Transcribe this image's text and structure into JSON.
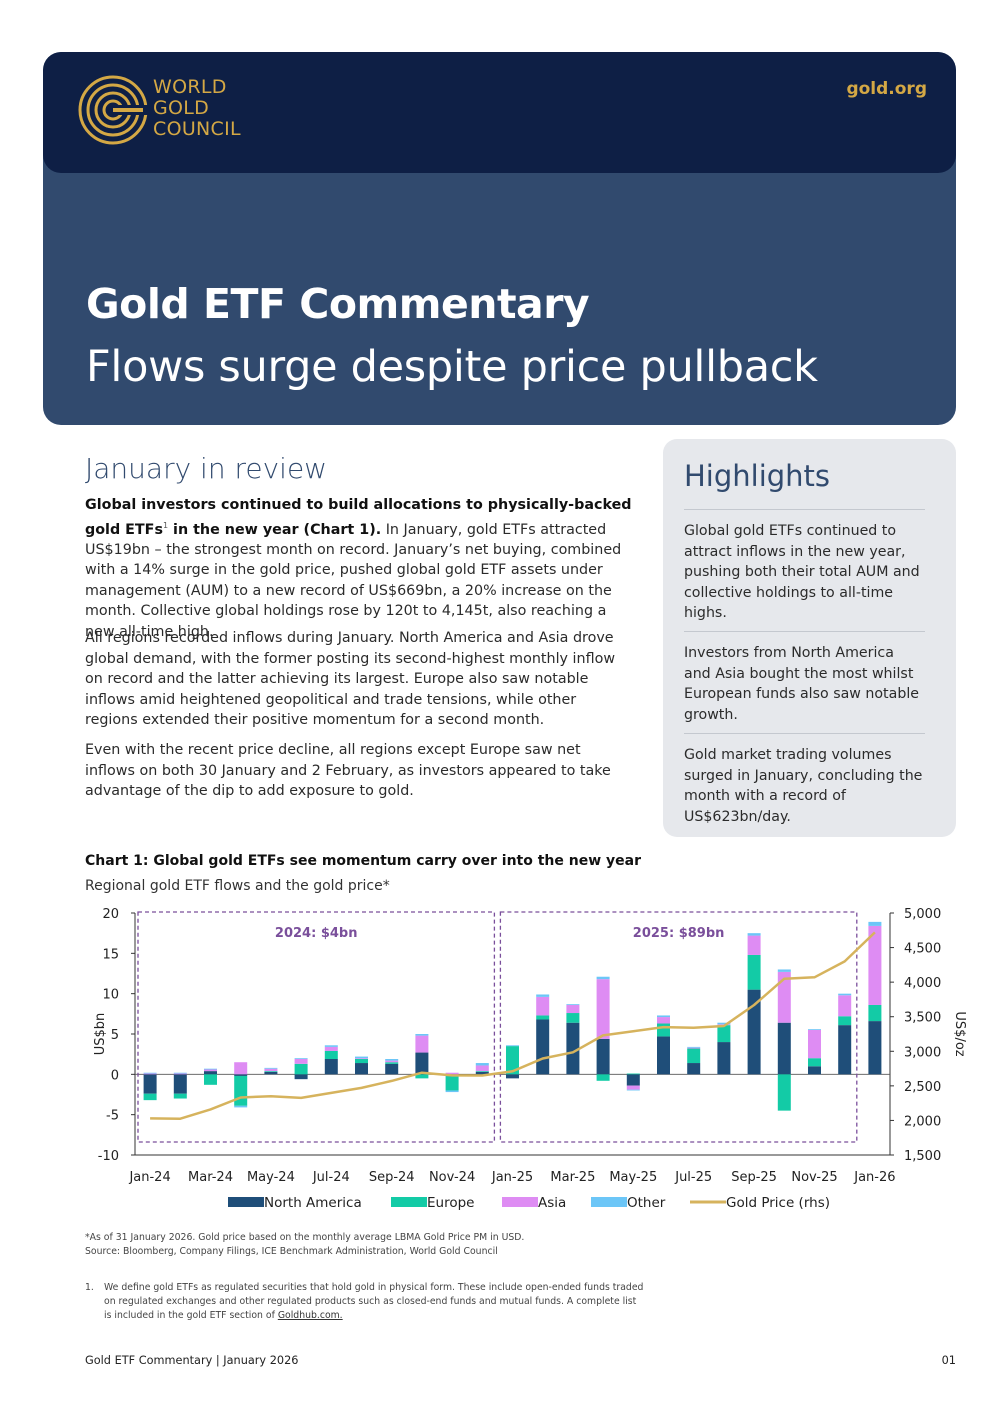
{
  "header": {
    "org_line1": "WORLD",
    "org_line2": "GOLD",
    "org_line3": "COUNCIL",
    "site": "gold.org",
    "title": "Gold ETF Commentary",
    "subtitle": "Flows surge despite price pullback"
  },
  "review": {
    "heading": "January in review",
    "p1_bold": "Global investors continued to build allocations to physically-backed gold ETFs",
    "p1_sup": "1",
    "p1_bold2": " in the new year (Chart 1).",
    "p1_rest": " In January, gold ETFs attracted US$19bn – the strongest month on record. January’s net buying, combined with a 14% surge in the gold price, pushed global gold ETF assets under management (AUM) to a new record of US$669bn, a 20% increase on the month. Collective global holdings rose by 120t to 4,145t, also reaching a new all-time high.",
    "p2": "All regions recorded inflows during January. North America and Asia drove global demand, with the former posting its second-highest monthly inflow on record and the latter achieving its largest. Europe also saw notable inflows amid heightened geopolitical and trade tensions, while other regions extended their positive momentum for a second month.",
    "p3": "Even with the recent price decline, all regions except Europe saw net inflows on both 30 January and 2 February, as investors appeared to take advantage of the dip to add exposure to gold."
  },
  "highlights": {
    "title": "Highlights",
    "items": [
      "Global gold ETFs continued to attract inflows in the new year, pushing both their total AUM and collective holdings to all-time highs.",
      "Investors from North America and Asia bought the most whilst European funds also saw notable growth.",
      "Gold market trading volumes surged in January, concluding the month with a record of US$623bn/day."
    ]
  },
  "chart": {
    "title": "Chart 1: Global gold ETFs see momentum carry over into the new year",
    "subtitle": "Regional gold ETF flows and the gold price*"
  },
  "chart_data": {
    "type": "bar",
    "stacked": true,
    "categories": [
      "Jan-24",
      "Feb-24",
      "Mar-24",
      "Apr-24",
      "May-24",
      "Jun-24",
      "Jul-24",
      "Aug-24",
      "Sep-24",
      "Oct-24",
      "Nov-24",
      "Dec-24",
      "Jan-25",
      "Feb-25",
      "Mar-25",
      "Apr-25",
      "May-25",
      "Jun-25",
      "Jul-25",
      "Aug-25",
      "Sep-25",
      "Oct-25",
      "Nov-25",
      "Dec-25",
      "Jan-26"
    ],
    "x_tick_labels": [
      "Jan-24",
      "Mar-24",
      "May-24",
      "Jul-24",
      "Sep-24",
      "Nov-24",
      "Jan-25",
      "Mar-25",
      "May-25",
      "Jul-25",
      "Sep-25",
      "Nov-25",
      "Jan-26"
    ],
    "series": [
      {
        "name": "North America",
        "color": "#1f4e79",
        "values": [
          -2.4,
          -2.4,
          0.4,
          -0.2,
          0.3,
          -0.6,
          1.9,
          1.4,
          1.3,
          2.7,
          -0.2,
          0.3,
          -0.5,
          6.8,
          6.4,
          4.4,
          -1.4,
          4.7,
          1.4,
          4.0,
          10.5,
          6.4,
          1.0,
          6.1,
          6.6
        ]
      },
      {
        "name": "Europe",
        "color": "#13cba6",
        "values": [
          -0.8,
          -0.6,
          -1.3,
          -3.7,
          0.1,
          1.3,
          1.0,
          0.5,
          0.2,
          -0.5,
          -1.8,
          0.1,
          3.5,
          0.5,
          1.2,
          -0.8,
          0.1,
          1.6,
          1.8,
          2.1,
          4.3,
          -4.5,
          1.0,
          1.1,
          2.0
        ]
      },
      {
        "name": "Asia",
        "color": "#de8cf3",
        "values": [
          0.1,
          0.1,
          0.2,
          1.5,
          0.3,
          0.6,
          0.5,
          0.1,
          0.2,
          2.1,
          0.2,
          0.7,
          0.0,
          2.3,
          1.0,
          7.4,
          -0.5,
          0.8,
          0.1,
          0.1,
          2.4,
          6.3,
          3.5,
          2.6,
          9.8
        ]
      },
      {
        "name": "Other",
        "color": "#6cc6f7",
        "values": [
          0.1,
          0.1,
          0.1,
          -0.2,
          0.1,
          0.1,
          0.2,
          0.2,
          0.2,
          0.2,
          -0.2,
          0.3,
          0.1,
          0.3,
          0.1,
          0.3,
          -0.1,
          0.2,
          0.1,
          0.2,
          0.3,
          0.3,
          0.1,
          0.2,
          0.5
        ]
      }
    ],
    "line_series": {
      "name": "Gold Price (rhs)",
      "color": "#d6b35d",
      "values": [
        2030,
        2025,
        2160,
        2331,
        2350,
        2326,
        2398,
        2470,
        2571,
        2690,
        2651,
        2650,
        2710,
        2895,
        2985,
        3230,
        3290,
        3350,
        3340,
        3365,
        3670,
        4050,
        4070,
        4300,
        4720
      ]
    },
    "ylabel": "US$bn",
    "ylim": [
      -10,
      20
    ],
    "yticks": [
      20,
      15,
      10,
      5,
      0,
      -5,
      -10
    ],
    "y2label": "US$/oz",
    "y2lim": [
      1500,
      5000
    ],
    "y2ticks": [
      "5,000",
      "4,500",
      "4,000",
      "3,500",
      "3,000",
      "2,500",
      "2,000",
      "1,500"
    ],
    "annotations": [
      {
        "label": "2024: $4bn",
        "from": "Jan-24",
        "to": "Dec-24"
      },
      {
        "label": "2025: $89bn",
        "from": "Jan-25",
        "to": "Dec-25"
      }
    ],
    "legend": [
      "North America",
      "Europe",
      "Asia",
      "Other",
      "Gold Price (rhs)"
    ],
    "legend_position": "bottom"
  },
  "notes": {
    "line1": "*As of 31 January 2026. Gold price based on the monthly average LBMA Gold Price PM in USD.",
    "line2": "Source: Bloomberg, Company Filings, ICE Benchmark Administration, World Gold Council"
  },
  "footnote": {
    "num": "1.",
    "text": "We define gold ETFs as regulated securities that hold gold in physical form. These include open-ended funds traded on regulated exchanges and other regulated products such as closed-end funds and mutual funds. A complete list is included in the gold ETF section of ",
    "link": "Goldhub.com."
  },
  "footer": {
    "left": "Gold ETF Commentary | January 2026",
    "page": "01"
  },
  "colors": {
    "navy": "#0e1f45",
    "slate": "#314a6e",
    "gold": "#d4a845",
    "annotation": "#7a4f9b"
  }
}
